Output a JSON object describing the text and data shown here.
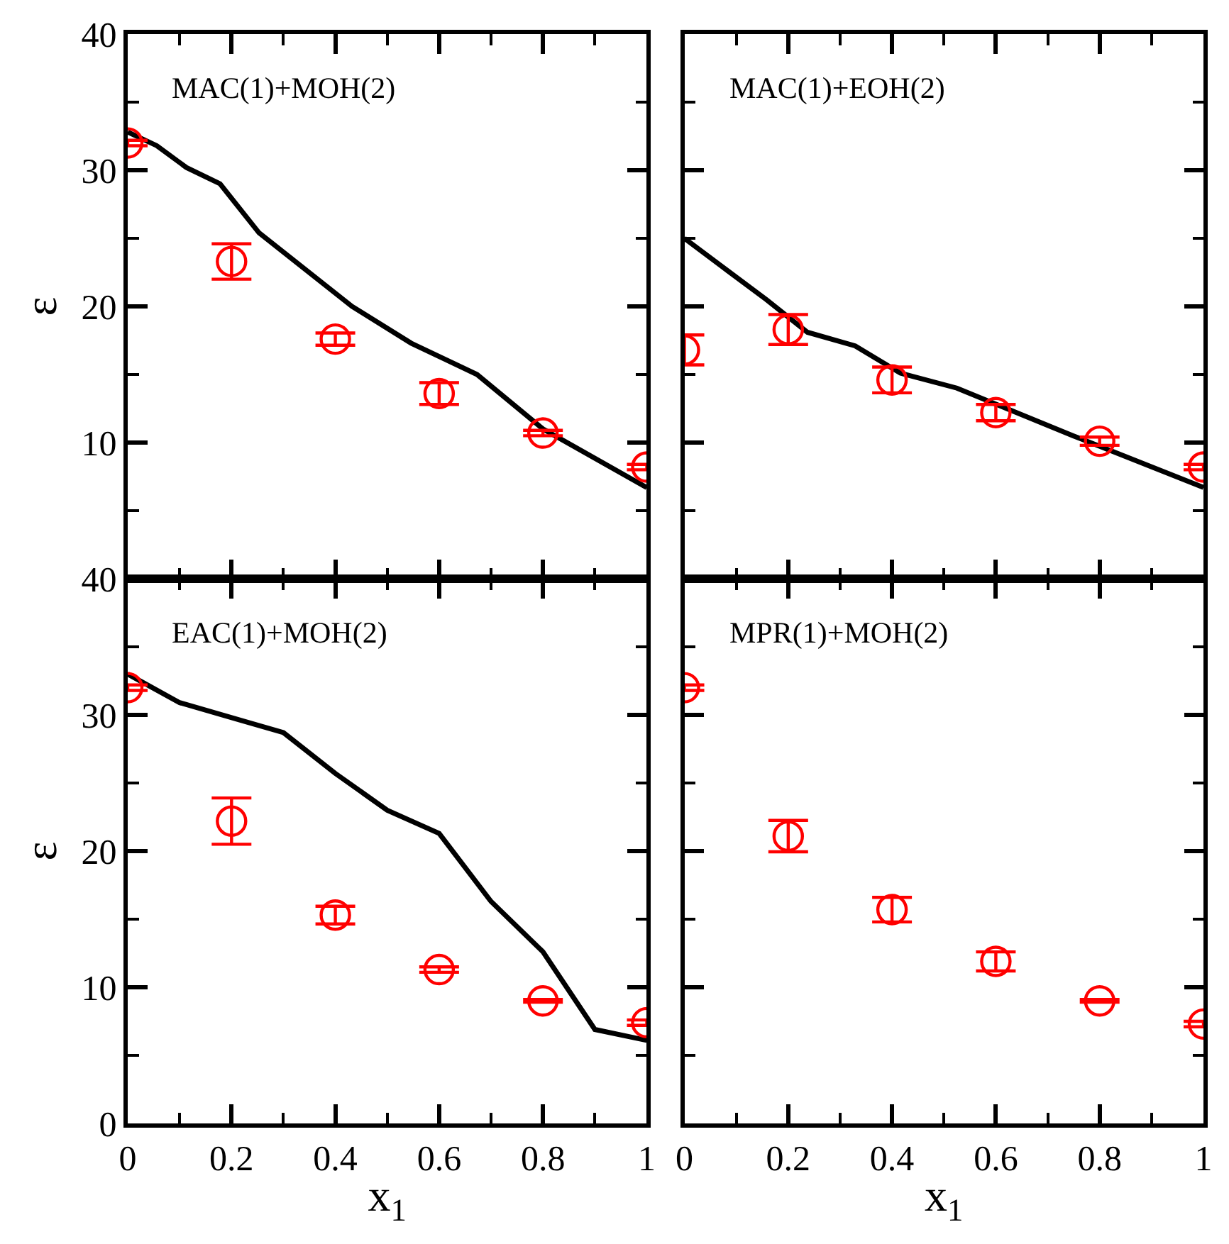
{
  "chart_data": [
    {
      "type": "scatter",
      "title": "MAC(1)+MOH(2)",
      "ylabel": "ε",
      "xlim": [
        0,
        1
      ],
      "ylim": [
        0,
        40
      ],
      "xticks": [
        0,
        0.2,
        0.4,
        0.6,
        0.8,
        1
      ],
      "yticks": [
        {
          "value": 0,
          "label": null
        },
        10,
        20,
        30,
        40
      ],
      "tick_labels": "y",
      "series": [
        {
          "type": "line",
          "color": "#000000",
          "marker": "none",
          "line_style": "solid",
          "x": [
            0,
            0.056,
            0.113,
            0.178,
            0.253,
            0.432,
            0.546,
            0.673,
            0.8,
            1
          ],
          "values": [
            32.8,
            31.8,
            30.2,
            29.0,
            25.4,
            20.0,
            17.3,
            15.0,
            11.0,
            6.7
          ]
        },
        {
          "color": "#ff0000",
          "marker": "circle",
          "x": [
            0,
            0.2,
            0.4,
            0.6,
            0.8,
            1
          ],
          "values": [
            32.0,
            23.3,
            17.6,
            13.6,
            10.7,
            8.2
          ],
          "errors": [
            0.2,
            1.3,
            0.45,
            0.8,
            0.2,
            0.2
          ]
        }
      ]
    },
    {
      "type": "scatter",
      "title": "MAC(1)+EOH(2)",
      "xlim": [
        0,
        1
      ],
      "ylim": [
        0,
        40
      ],
      "xticks": [
        0,
        0.2,
        0.4,
        0.6,
        0.8,
        1
      ],
      "yticks": [
        {
          "value": 0,
          "label": null
        },
        10,
        20,
        30,
        40
      ],
      "tick_labels": false,
      "series": [
        {
          "type": "line",
          "color": "#000000",
          "marker": "none",
          "line_style": "solid",
          "x": [
            0,
            0.084,
            0.158,
            0.237,
            0.329,
            0.416,
            0.525,
            0.749,
            1
          ],
          "values": [
            25.0,
            22.6,
            20.5,
            18.1,
            17.1,
            15.1,
            14.0,
            10.5,
            6.7
          ]
        },
        {
          "color": "#ff0000",
          "marker": "circle",
          "x": [
            0,
            0.2,
            0.4,
            0.6,
            0.8,
            1
          ],
          "values": [
            16.8,
            18.3,
            14.6,
            12.2,
            10.1,
            8.2
          ],
          "errors": [
            1.1,
            1.1,
            0.95,
            0.6,
            0.3,
            0.2
          ]
        }
      ]
    },
    {
      "type": "scatter",
      "title": "EAC(1)+MOH(2)",
      "xlabel": "x$_{1}$",
      "ylabel": "ε",
      "xlim": [
        0,
        1
      ],
      "ylim": [
        0,
        40
      ],
      "xticks": [
        0,
        0.2,
        0.4,
        0.6,
        0.8,
        1
      ],
      "yticks": [
        0,
        10,
        20,
        30,
        40
      ],
      "series": [
        {
          "type": "line",
          "color": "#000000",
          "marker": "none",
          "line_style": "solid",
          "x": [
            0,
            0.1,
            0.3,
            0.4,
            0.5,
            0.6,
            0.7,
            0.8,
            0.9,
            1
          ],
          "values": [
            33.0,
            30.9,
            28.7,
            25.7,
            23.0,
            21.3,
            16.3,
            12.6,
            6.9,
            6.1
          ]
        },
        {
          "color": "#ff0000",
          "marker": "circle",
          "x": [
            0,
            0.2,
            0.4,
            0.6,
            0.8,
            1
          ],
          "values": [
            32.0,
            22.2,
            15.3,
            11.3,
            9.0,
            7.4
          ],
          "errors": [
            0.2,
            1.7,
            0.65,
            0.2,
            0.1,
            0.2
          ]
        }
      ]
    },
    {
      "type": "scatter",
      "title": "MPR(1)+MOH(2)",
      "xlabel": "x$_{1}$",
      "xlim": [
        0,
        1
      ],
      "ylim": [
        0,
        40
      ],
      "xticks": [
        0,
        0.2,
        0.4,
        0.6,
        0.8,
        1
      ],
      "yticks": [
        0,
        10,
        20,
        30,
        40
      ],
      "tick_labels": "x",
      "series": [
        {
          "color": "#ff0000",
          "marker": "circle",
          "x": [
            0,
            0.2,
            0.4,
            0.6,
            0.8,
            1
          ],
          "values": [
            32.0,
            21.1,
            15.7,
            11.9,
            9.0,
            7.3
          ],
          "errors": [
            0.2,
            1.15,
            0.9,
            0.7,
            0.1,
            0.2
          ]
        }
      ]
    }
  ]
}
